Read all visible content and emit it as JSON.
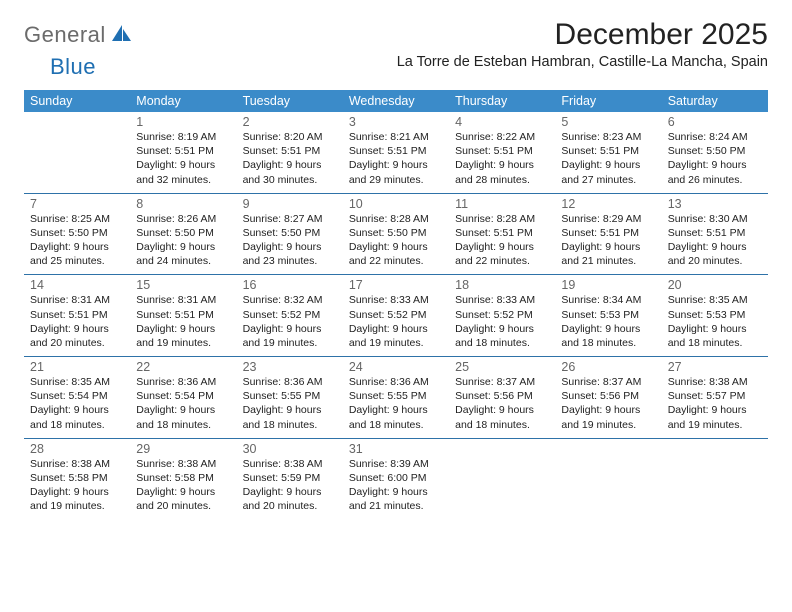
{
  "logo": {
    "word1": "General",
    "word2": "Blue"
  },
  "title": "December 2025",
  "location": "La Torre de Esteban Hambran, Castille-La Mancha, Spain",
  "colors": {
    "header_bg": "#3b8bc9",
    "header_text": "#ffffff",
    "row_border": "#2e72a8",
    "date_color": "#666666",
    "text_color": "#222222",
    "logo_gray": "#6b6b6b",
    "logo_blue": "#1f6fb2",
    "background": "#ffffff"
  },
  "typography": {
    "title_size_pt": 22,
    "location_size_pt": 11,
    "dayheader_size_pt": 9,
    "cell_size_pt": 8
  },
  "day_names": [
    "Sunday",
    "Monday",
    "Tuesday",
    "Wednesday",
    "Thursday",
    "Friday",
    "Saturday"
  ],
  "weeks": [
    [
      null,
      {
        "d": "1",
        "sr": "8:19 AM",
        "ss": "5:51 PM",
        "dl": "9 hours and 32 minutes."
      },
      {
        "d": "2",
        "sr": "8:20 AM",
        "ss": "5:51 PM",
        "dl": "9 hours and 30 minutes."
      },
      {
        "d": "3",
        "sr": "8:21 AM",
        "ss": "5:51 PM",
        "dl": "9 hours and 29 minutes."
      },
      {
        "d": "4",
        "sr": "8:22 AM",
        "ss": "5:51 PM",
        "dl": "9 hours and 28 minutes."
      },
      {
        "d": "5",
        "sr": "8:23 AM",
        "ss": "5:51 PM",
        "dl": "9 hours and 27 minutes."
      },
      {
        "d": "6",
        "sr": "8:24 AM",
        "ss": "5:50 PM",
        "dl": "9 hours and 26 minutes."
      }
    ],
    [
      {
        "d": "7",
        "sr": "8:25 AM",
        "ss": "5:50 PM",
        "dl": "9 hours and 25 minutes."
      },
      {
        "d": "8",
        "sr": "8:26 AM",
        "ss": "5:50 PM",
        "dl": "9 hours and 24 minutes."
      },
      {
        "d": "9",
        "sr": "8:27 AM",
        "ss": "5:50 PM",
        "dl": "9 hours and 23 minutes."
      },
      {
        "d": "10",
        "sr": "8:28 AM",
        "ss": "5:50 PM",
        "dl": "9 hours and 22 minutes."
      },
      {
        "d": "11",
        "sr": "8:28 AM",
        "ss": "5:51 PM",
        "dl": "9 hours and 22 minutes."
      },
      {
        "d": "12",
        "sr": "8:29 AM",
        "ss": "5:51 PM",
        "dl": "9 hours and 21 minutes."
      },
      {
        "d": "13",
        "sr": "8:30 AM",
        "ss": "5:51 PM",
        "dl": "9 hours and 20 minutes."
      }
    ],
    [
      {
        "d": "14",
        "sr": "8:31 AM",
        "ss": "5:51 PM",
        "dl": "9 hours and 20 minutes."
      },
      {
        "d": "15",
        "sr": "8:31 AM",
        "ss": "5:51 PM",
        "dl": "9 hours and 19 minutes."
      },
      {
        "d": "16",
        "sr": "8:32 AM",
        "ss": "5:52 PM",
        "dl": "9 hours and 19 minutes."
      },
      {
        "d": "17",
        "sr": "8:33 AM",
        "ss": "5:52 PM",
        "dl": "9 hours and 19 minutes."
      },
      {
        "d": "18",
        "sr": "8:33 AM",
        "ss": "5:52 PM",
        "dl": "9 hours and 18 minutes."
      },
      {
        "d": "19",
        "sr": "8:34 AM",
        "ss": "5:53 PM",
        "dl": "9 hours and 18 minutes."
      },
      {
        "d": "20",
        "sr": "8:35 AM",
        "ss": "5:53 PM",
        "dl": "9 hours and 18 minutes."
      }
    ],
    [
      {
        "d": "21",
        "sr": "8:35 AM",
        "ss": "5:54 PM",
        "dl": "9 hours and 18 minutes."
      },
      {
        "d": "22",
        "sr": "8:36 AM",
        "ss": "5:54 PM",
        "dl": "9 hours and 18 minutes."
      },
      {
        "d": "23",
        "sr": "8:36 AM",
        "ss": "5:55 PM",
        "dl": "9 hours and 18 minutes."
      },
      {
        "d": "24",
        "sr": "8:36 AM",
        "ss": "5:55 PM",
        "dl": "9 hours and 18 minutes."
      },
      {
        "d": "25",
        "sr": "8:37 AM",
        "ss": "5:56 PM",
        "dl": "9 hours and 18 minutes."
      },
      {
        "d": "26",
        "sr": "8:37 AM",
        "ss": "5:56 PM",
        "dl": "9 hours and 19 minutes."
      },
      {
        "d": "27",
        "sr": "8:38 AM",
        "ss": "5:57 PM",
        "dl": "9 hours and 19 minutes."
      }
    ],
    [
      {
        "d": "28",
        "sr": "8:38 AM",
        "ss": "5:58 PM",
        "dl": "9 hours and 19 minutes."
      },
      {
        "d": "29",
        "sr": "8:38 AM",
        "ss": "5:58 PM",
        "dl": "9 hours and 20 minutes."
      },
      {
        "d": "30",
        "sr": "8:38 AM",
        "ss": "5:59 PM",
        "dl": "9 hours and 20 minutes."
      },
      {
        "d": "31",
        "sr": "8:39 AM",
        "ss": "6:00 PM",
        "dl": "9 hours and 21 minutes."
      },
      null,
      null,
      null
    ]
  ],
  "labels": {
    "sunrise": "Sunrise:",
    "sunset": "Sunset:",
    "daylight": "Daylight:"
  }
}
